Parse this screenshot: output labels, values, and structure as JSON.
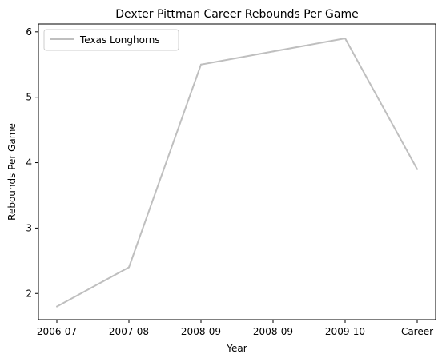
{
  "chart_data": {
    "type": "line",
    "title": "Dexter Pittman Career Rebounds Per Game",
    "xlabel": "Year",
    "ylabel": "Rebounds Per Game",
    "categories": [
      "2006-07",
      "2007-08",
      "2008-09",
      "2008-09",
      "2009-10",
      "Career"
    ],
    "series": [
      {
        "name": "Texas Longhorns",
        "color": "#bfbfbf",
        "values": [
          1.8,
          2.4,
          5.5,
          5.7,
          5.9,
          3.9
        ]
      }
    ],
    "ylim": [
      1.6,
      6.12
    ],
    "yticks": [
      2,
      3,
      4,
      5,
      6
    ],
    "grid": false,
    "legend": "top-left"
  }
}
